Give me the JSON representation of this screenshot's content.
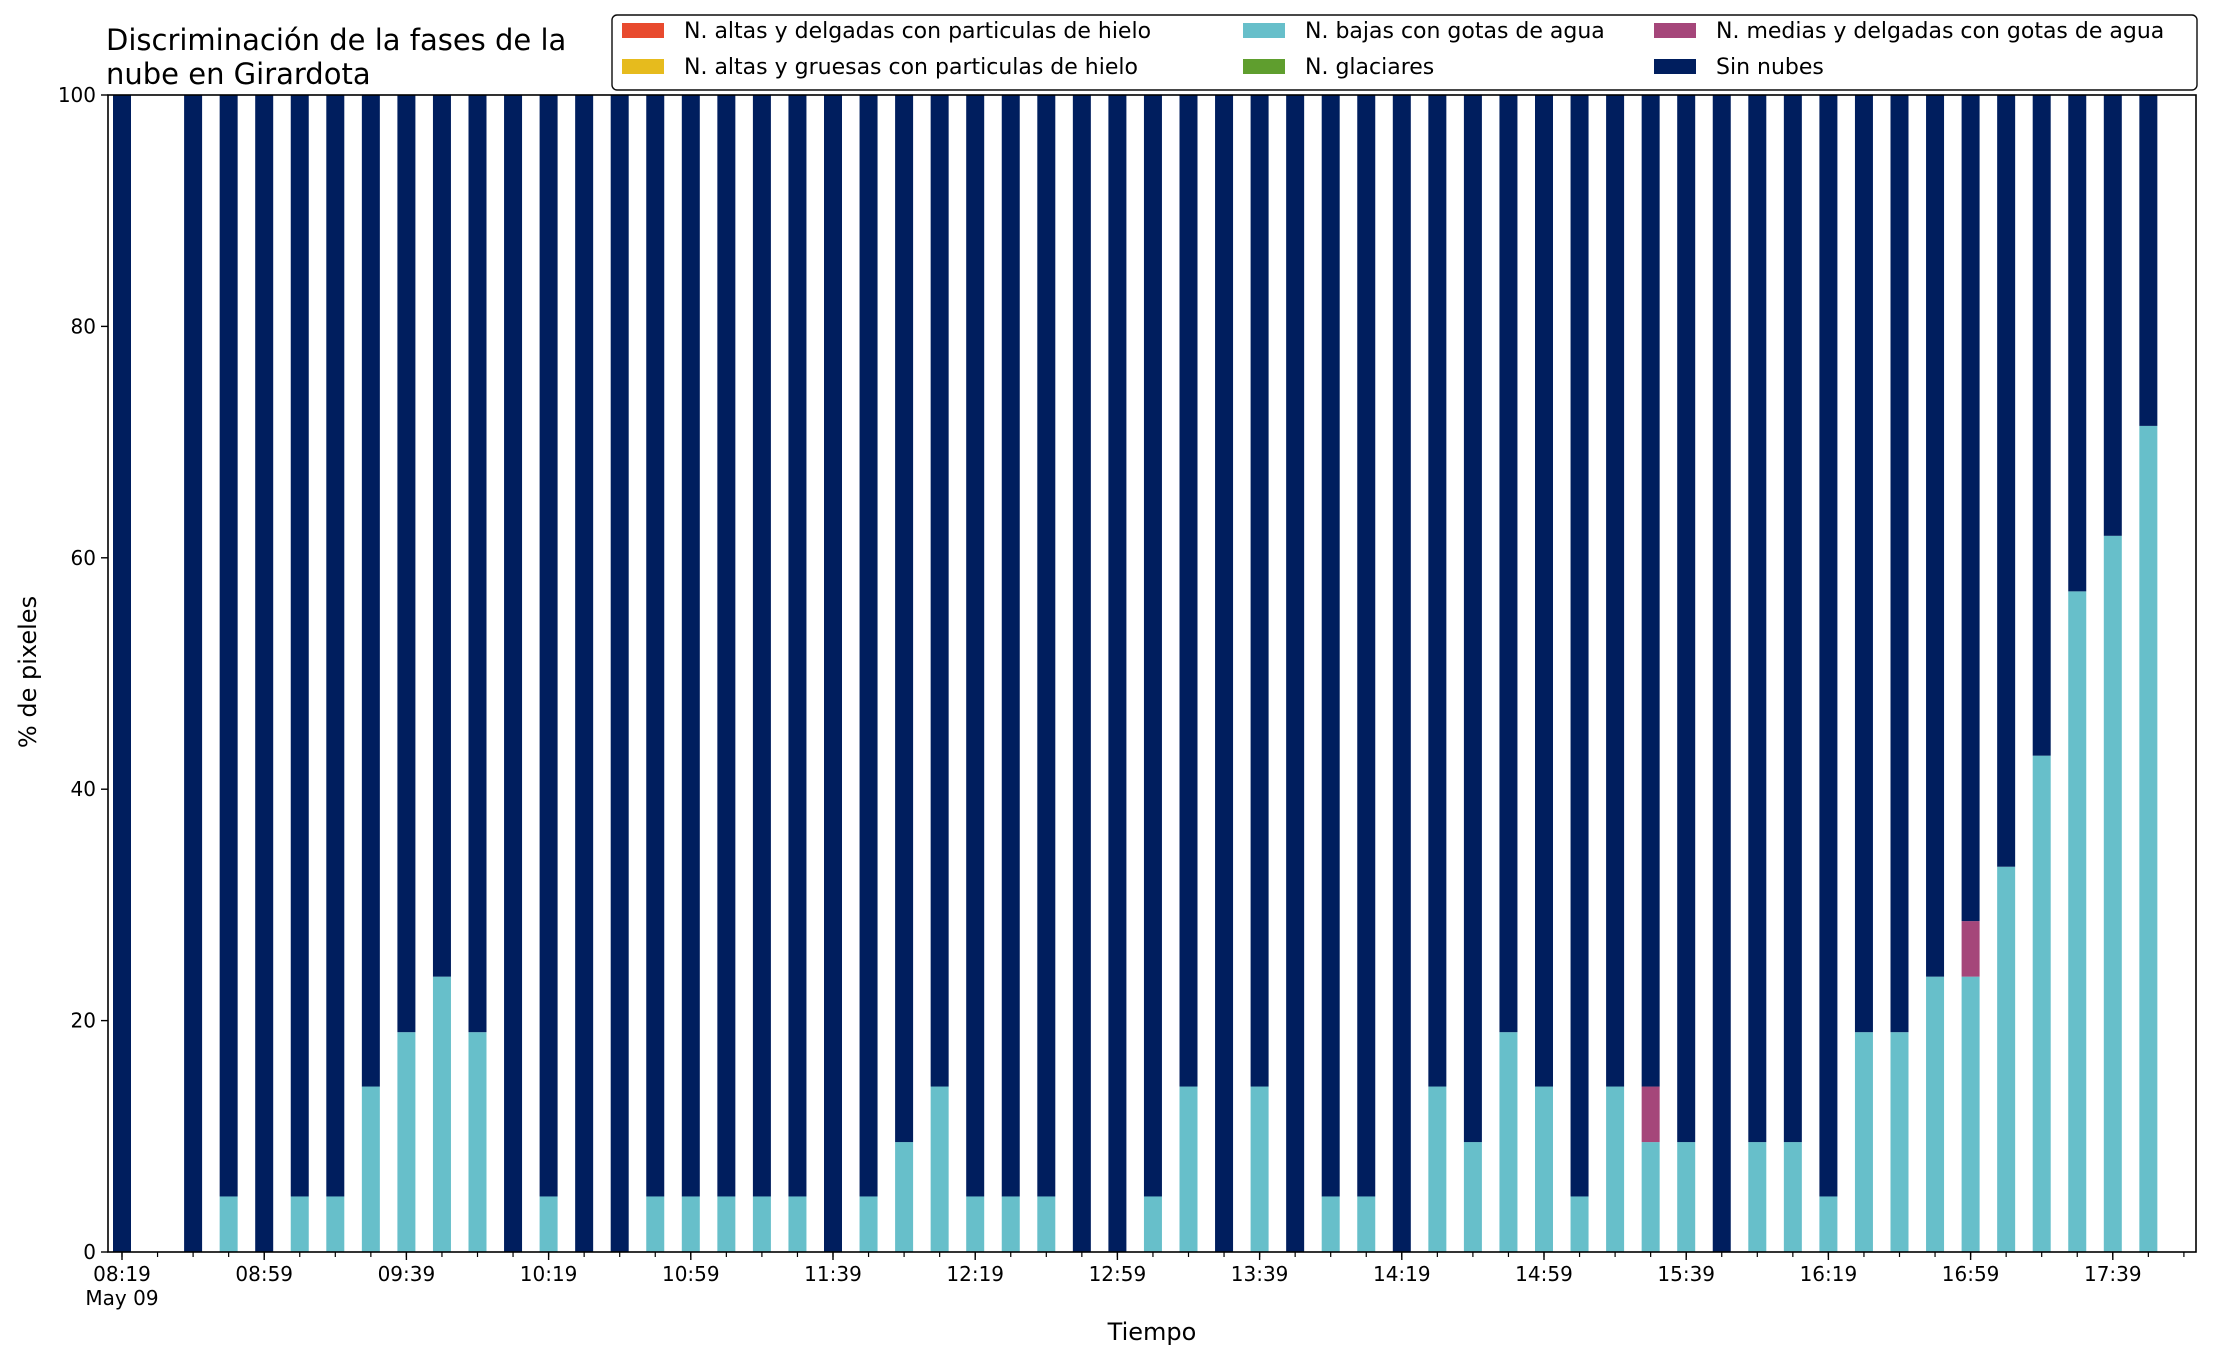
{
  "chart_data": {
    "type": "bar",
    "stacked": true,
    "title": [
      "Discriminación de la fases de la",
      "nube en Girardota"
    ],
    "xlabel": "Tiempo",
    "ylabel": "% de pixeles",
    "ylim": [
      0,
      100
    ],
    "yticks": [
      0,
      20,
      40,
      60,
      80,
      100
    ],
    "x_start": "08:19",
    "x_step_minutes": 10,
    "xtick_labels": [
      {
        "index": 0,
        "label": "08:19",
        "sublabel": "May 09"
      },
      {
        "index": 4,
        "label": "08:59"
      },
      {
        "index": 8,
        "label": "09:39"
      },
      {
        "index": 12,
        "label": "10:19"
      },
      {
        "index": 16,
        "label": "10:59"
      },
      {
        "index": 20,
        "label": "11:39"
      },
      {
        "index": 24,
        "label": "12:19"
      },
      {
        "index": 28,
        "label": "12:59"
      },
      {
        "index": 32,
        "label": "13:39"
      },
      {
        "index": 36,
        "label": "14:19"
      },
      {
        "index": 40,
        "label": "14:59"
      },
      {
        "index": 44,
        "label": "15:39"
      },
      {
        "index": 48,
        "label": "16:19"
      },
      {
        "index": 52,
        "label": "16:59"
      },
      {
        "index": 56,
        "label": "17:39"
      }
    ],
    "grid": false,
    "legend_position": "top-right",
    "legend_columns": 3,
    "series": [
      {
        "name": "N. altas y delgadas con particulas de hielo",
        "color": "#e84a2e",
        "values": [
          0,
          null,
          0,
          0,
          0,
          0,
          0,
          0,
          0,
          0,
          0,
          0,
          0,
          0,
          0,
          0,
          0,
          0,
          0,
          0,
          0,
          0,
          0,
          0,
          0,
          0,
          0,
          0,
          0,
          0,
          0,
          0,
          0,
          0,
          0,
          0,
          0,
          0,
          0,
          0,
          0,
          0,
          0,
          0,
          0,
          0,
          0,
          0,
          0,
          0,
          0,
          0,
          0,
          0,
          0,
          0,
          0,
          0,
          0
        ]
      },
      {
        "name": "N. altas y gruesas con particulas de hielo",
        "color": "#e6bb1d",
        "values": [
          0,
          null,
          0,
          0,
          0,
          0,
          0,
          0,
          0,
          0,
          0,
          0,
          0,
          0,
          0,
          0,
          0,
          0,
          0,
          0,
          0,
          0,
          0,
          0,
          0,
          0,
          0,
          0,
          0,
          0,
          0,
          0,
          0,
          0,
          0,
          0,
          0,
          0,
          0,
          0,
          0,
          0,
          0,
          0,
          0,
          0,
          0,
          0,
          0,
          0,
          0,
          0,
          0,
          0,
          0,
          0,
          0,
          0,
          0
        ]
      },
      {
        "name": "N. bajas con gotas de agua",
        "color": "#67bfca",
        "values": [
          0,
          null,
          0,
          4.8,
          0,
          4.8,
          4.8,
          14.3,
          19.0,
          23.8,
          19.0,
          0,
          4.8,
          0,
          0,
          4.8,
          4.8,
          4.8,
          4.8,
          4.8,
          0,
          4.8,
          9.5,
          14.3,
          4.8,
          4.8,
          4.8,
          0,
          0,
          4.8,
          14.3,
          0,
          14.3,
          0,
          4.8,
          4.8,
          0,
          14.3,
          9.5,
          19.0,
          14.3,
          4.8,
          14.3,
          9.5,
          9.5,
          0,
          9.5,
          9.5,
          4.8,
          19.0,
          19.0,
          23.8,
          23.8,
          33.3,
          42.9,
          57.1,
          61.9,
          71.4
        ]
      },
      {
        "name": "N. glaciares",
        "color": "#5f9e2e",
        "values": [
          0,
          null,
          0,
          0,
          0,
          0,
          0,
          0,
          0,
          0,
          0,
          0,
          0,
          0,
          0,
          0,
          0,
          0,
          0,
          0,
          0,
          0,
          0,
          0,
          0,
          0,
          0,
          0,
          0,
          0,
          0,
          0,
          0,
          0,
          0,
          0,
          0,
          0,
          0,
          0,
          0,
          0,
          0,
          0,
          0,
          0,
          0,
          0,
          0,
          0,
          0,
          0,
          0,
          0,
          0,
          0,
          0,
          0,
          0
        ]
      },
      {
        "name": "N. medias y delgadas con gotas de agua",
        "color": "#a5467a",
        "values": [
          0,
          null,
          0,
          0,
          0,
          0,
          0,
          0,
          0,
          0,
          0,
          0,
          0,
          0,
          0,
          0,
          0,
          0,
          0,
          0,
          0,
          0,
          0,
          0,
          0,
          0,
          0,
          0,
          0,
          0,
          0,
          0,
          0,
          0,
          0,
          0,
          0,
          0,
          0,
          0,
          0,
          0,
          0,
          4.8,
          0,
          0,
          0,
          0,
          0,
          0,
          0,
          0,
          4.8,
          0,
          0,
          0,
          0,
          0
        ]
      },
      {
        "name": "Sin nubes",
        "color": "#001e5e",
        "values": [
          100,
          null,
          100,
          95.2,
          100,
          95.2,
          95.2,
          85.7,
          81.0,
          76.2,
          81.0,
          100,
          95.2,
          100,
          100,
          95.2,
          95.2,
          95.2,
          95.2,
          95.2,
          100,
          95.2,
          90.5,
          85.7,
          95.2,
          95.2,
          95.2,
          100,
          100,
          95.2,
          85.7,
          100,
          85.7,
          100,
          95.2,
          95.2,
          100,
          85.7,
          90.5,
          81.0,
          85.7,
          95.2,
          85.7,
          85.7,
          90.5,
          100,
          90.5,
          90.5,
          95.2,
          81.0,
          81.0,
          76.2,
          71.4,
          66.7,
          57.1,
          42.9,
          38.1,
          28.6
        ]
      }
    ]
  }
}
